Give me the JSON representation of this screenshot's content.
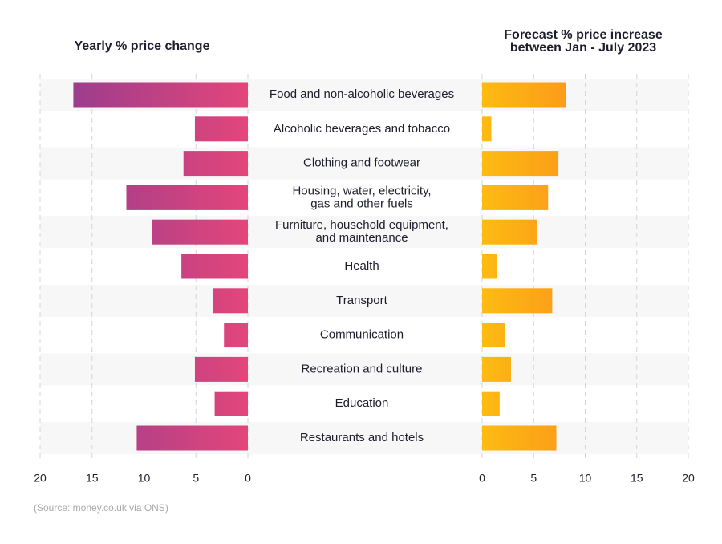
{
  "chart_data": [
    {
      "type": "bar",
      "orientation": "horizontal",
      "title": "Yearly % price change",
      "categories": [
        "Food and non-alcoholic beverages",
        "Alcoholic beverages and tobacco",
        "Clothing and footwear",
        "Housing, water, electricity,\ngas and other fuels",
        "Furniture, household equipment,\nand maintenance",
        "Health",
        "Transport",
        "Communication",
        "Recreation and culture",
        "Education",
        "Restaurants and hotels"
      ],
      "values": [
        16.8,
        5.1,
        6.2,
        11.7,
        9.2,
        6.4,
        3.4,
        2.3,
        5.1,
        3.2,
        10.7
      ],
      "color": [
        "#8f3b90",
        "#e3467a"
      ],
      "xlim": [
        20,
        0
      ],
      "xticks": [
        20,
        15,
        10,
        5,
        0
      ],
      "grid": true
    },
    {
      "type": "bar",
      "orientation": "horizontal",
      "title": "Forecast % price increase\nbetween Jan - July 2023",
      "values": [
        8.1,
        0.9,
        7.4,
        6.4,
        5.3,
        1.4,
        6.8,
        2.2,
        2.8,
        1.7,
        7.2
      ],
      "color": [
        "#fcbb12",
        "#fe6e22"
      ],
      "xlim": [
        0,
        20
      ],
      "xticks": [
        0,
        5,
        10,
        15,
        20
      ],
      "grid": true
    }
  ],
  "source": "(Source: money.co.uk via ONS)"
}
